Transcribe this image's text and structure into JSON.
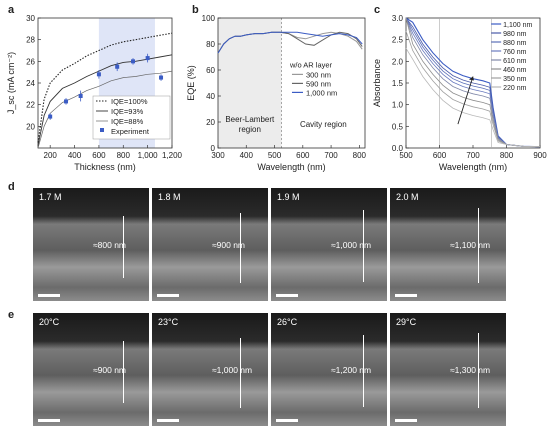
{
  "panels": {
    "a": "a",
    "b": "b",
    "c": "c",
    "d": "d",
    "e": "e"
  },
  "chart_a": {
    "type": "line",
    "ylabel": "J_sc (mA cm⁻²)",
    "xlabel": "Thickness (nm)",
    "xticks": [
      "200",
      "400",
      "600",
      "800",
      "1,000",
      "1,200"
    ],
    "yticks": [
      "20",
      "22",
      "24",
      "26",
      "28",
      "30"
    ],
    "xlim": [
      100,
      1200
    ],
    "ylim": [
      18,
      30
    ],
    "legend": [
      "IQE=100%",
      "IQE=93%",
      "IQE=88%",
      "Experiment"
    ],
    "series": [
      {
        "name": "IQE=100%",
        "style": "dotted",
        "x": [
          100,
          150,
          200,
          300,
          400,
          500,
          600,
          700,
          800,
          900,
          1000,
          1100,
          1200
        ],
        "y": [
          18.5,
          22.5,
          24.0,
          25.2,
          25.8,
          26.5,
          27.0,
          27.5,
          27.8,
          28.0,
          28.2,
          28.4,
          28.6
        ]
      },
      {
        "name": "IQE=93%",
        "style": "solid",
        "x": [
          100,
          150,
          200,
          300,
          400,
          500,
          600,
          700,
          800,
          900,
          1000,
          1100,
          1200
        ],
        "y": [
          18.2,
          21.0,
          22.3,
          23.5,
          24.0,
          24.6,
          25.1,
          25.6,
          25.9,
          26.0,
          26.2,
          26.4,
          26.6
        ]
      },
      {
        "name": "IQE=88%",
        "style": "solid-light",
        "x": [
          100,
          150,
          200,
          300,
          400,
          500,
          600,
          700,
          800,
          900,
          1000,
          1100,
          1200
        ],
        "y": [
          18.0,
          20.0,
          21.2,
          22.2,
          22.7,
          23.3,
          23.7,
          24.2,
          24.5,
          24.6,
          24.8,
          24.9,
          25.1
        ]
      }
    ],
    "experiment": {
      "x": [
        200,
        330,
        450,
        600,
        750,
        880,
        1000,
        1110
      ],
      "y": [
        20.9,
        22.3,
        22.8,
        24.8,
        25.5,
        26.0,
        26.3,
        24.5
      ],
      "err": [
        0.3,
        0.3,
        0.5,
        0.4,
        0.4,
        0.3,
        0.4,
        0.3
      ]
    },
    "highlight_range": [
      600,
      1060
    ]
  },
  "chart_b": {
    "type": "line",
    "ylabel": "EQE (%)",
    "xlabel": "Wavelength (nm)",
    "xticks": [
      "300",
      "400",
      "500",
      "600",
      "700",
      "800"
    ],
    "yticks": [
      "0",
      "20",
      "40",
      "60",
      "80",
      "100"
    ],
    "xlim": [
      300,
      820
    ],
    "ylim": [
      0,
      100
    ],
    "legend_title": "w/o AR layer",
    "legend": [
      "300 nm",
      "590 nm",
      "1,000 nm"
    ],
    "regions": [
      "Beer-Lambert region",
      "Cavity region"
    ],
    "region_split": 525,
    "series": [
      {
        "name": "300 nm",
        "x": [
          300,
          320,
          340,
          360,
          380,
          400,
          430,
          460,
          490,
          520,
          550,
          580,
          610,
          640,
          670,
          700,
          730,
          760,
          790,
          810
        ],
        "y": [
          73,
          80,
          84,
          86,
          86,
          87,
          88,
          88,
          89,
          89,
          88,
          85,
          84,
          86,
          88,
          89,
          88,
          86,
          82,
          76
        ]
      },
      {
        "name": "590 nm",
        "x": [
          300,
          320,
          340,
          360,
          380,
          400,
          430,
          460,
          490,
          520,
          550,
          580,
          610,
          640,
          670,
          700,
          730,
          760,
          790,
          810
        ],
        "y": [
          73,
          80,
          84,
          86,
          86,
          87,
          88,
          88,
          89,
          89,
          88,
          84,
          80,
          79,
          83,
          87,
          89,
          88,
          84,
          78
        ]
      },
      {
        "name": "1,000 nm",
        "x": [
          300,
          320,
          340,
          360,
          380,
          400,
          430,
          460,
          490,
          520,
          550,
          580,
          610,
          640,
          670,
          700,
          730,
          760,
          790,
          810
        ],
        "y": [
          73,
          80,
          84,
          86,
          86,
          87,
          88,
          88,
          89,
          89,
          89,
          89,
          88,
          87,
          86,
          87,
          88,
          87,
          85,
          80
        ]
      }
    ]
  },
  "chart_c": {
    "type": "line",
    "ylabel": "Absorbance",
    "xlabel": "Wavelength (nm)",
    "xticks": [
      "500",
      "600",
      "700",
      "800",
      "900"
    ],
    "yticks": [
      "0.0",
      "0.5",
      "1.0",
      "1.5",
      "2.0",
      "2.5",
      "3.0"
    ],
    "xlim": [
      500,
      900
    ],
    "ylim": [
      0,
      3.0
    ],
    "legend": [
      "1,100 nm",
      "980 nm",
      "880 nm",
      "760 nm",
      "610 nm",
      "460 nm",
      "350 nm",
      "220 nm"
    ],
    "marks": [
      600,
      755
    ],
    "plateau": [
      1.55,
      1.45,
      1.38,
      1.3,
      1.2,
      1.05,
      0.9,
      0.7
    ],
    "start": [
      3.0,
      3.0,
      3.0,
      3.0,
      3.0,
      3.0,
      2.7,
      2.3
    ]
  },
  "sem_d": [
    {
      "label": "1.7 M",
      "thickness": "≈800 nm"
    },
    {
      "label": "1.8 M",
      "thickness": "≈900 nm"
    },
    {
      "label": "1.9 M",
      "thickness": "≈1,000 nm"
    },
    {
      "label": "2.0 M",
      "thickness": "≈1,100 nm"
    }
  ],
  "sem_e": [
    {
      "label": "20°C",
      "thickness": "≈900 nm"
    },
    {
      "label": "23°C",
      "thickness": "≈1,000 nm"
    },
    {
      "label": "26°C",
      "thickness": "≈1,200 nm"
    },
    {
      "label": "29°C",
      "thickness": "≈1,300 nm"
    }
  ],
  "colors": {
    "blue": "#3b5cc4",
    "highlight": "#dfe5f7",
    "gray_region": "#ececec"
  }
}
